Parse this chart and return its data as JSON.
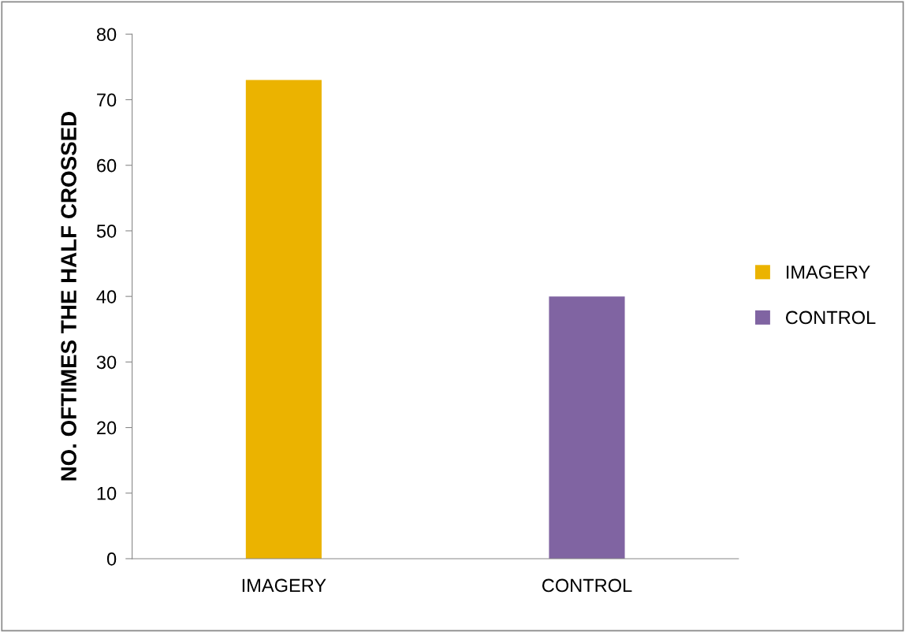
{
  "chart_data": {
    "type": "bar",
    "ylabel": "NO. OFTIMES THE HALF CROSSED",
    "categories": [
      "IMAGERY",
      "CONTROL"
    ],
    "series": [
      {
        "name": "IMAGERY",
        "color": "#ebb300",
        "values": [
          73,
          null
        ]
      },
      {
        "name": "CONTROL",
        "color": "#8064a2",
        "values": [
          null,
          40
        ]
      }
    ],
    "ylim": [
      0,
      80
    ],
    "yticks": [
      0,
      10,
      20,
      30,
      40,
      50,
      60,
      70,
      80
    ],
    "grid": false,
    "legend": "right"
  }
}
